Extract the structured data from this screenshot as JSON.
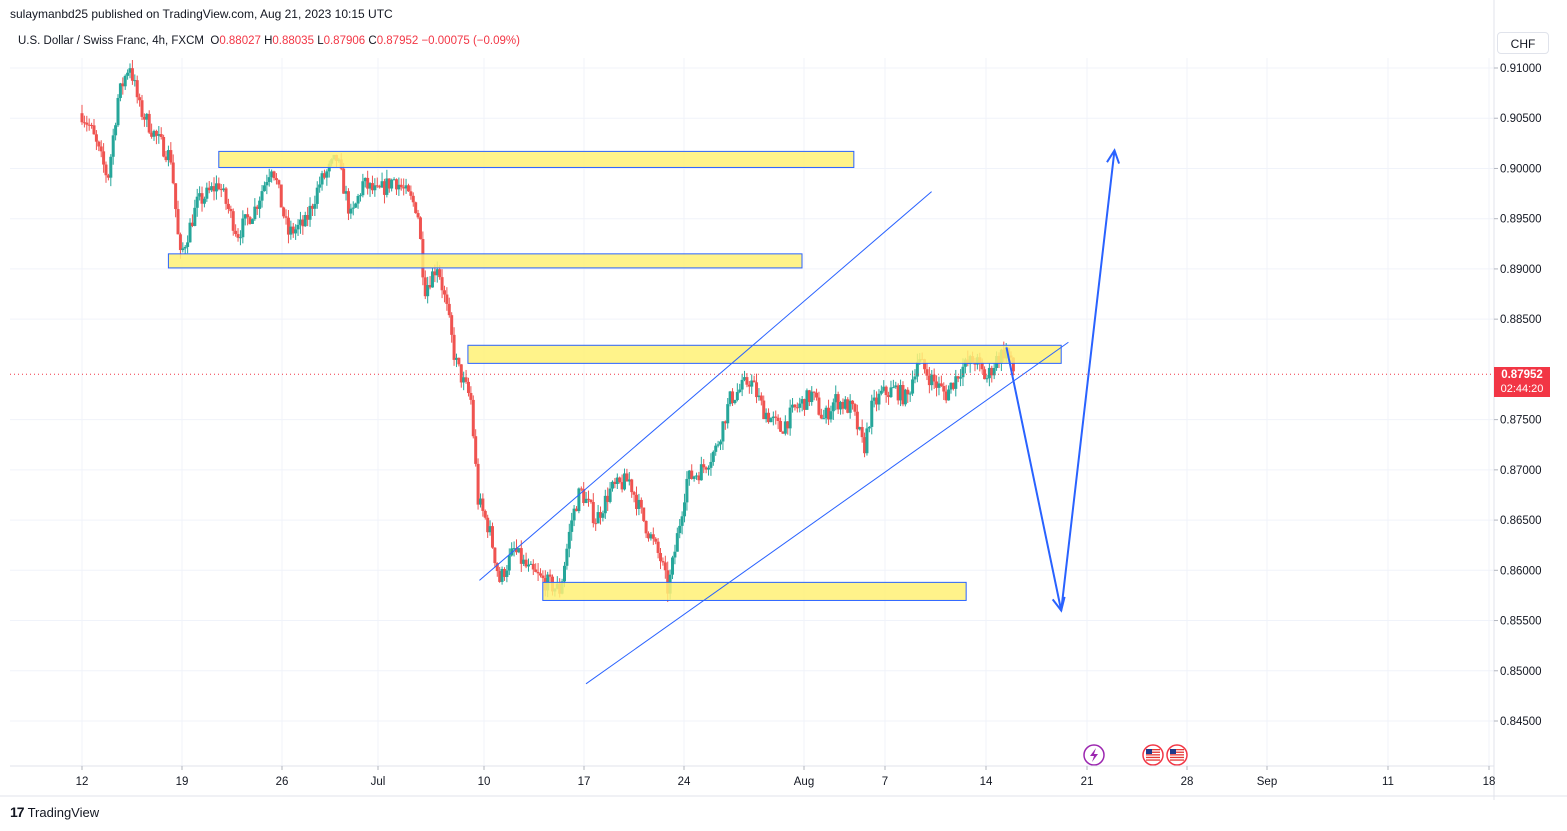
{
  "header": {
    "publisher_line": "sulaymanbd25 published on TradingView.com, Aug 21, 2023 10:15 UTC",
    "symbol": "U.S. Dollar / Swiss Franc, 4h, FXCM",
    "open_label": "O",
    "open": "0.88027",
    "high_label": "H",
    "high": "0.88035",
    "low_label": "L",
    "low": "0.87906",
    "close_label": "C",
    "close": "0.87952",
    "change": "−0.00075 (−0.09%)"
  },
  "currency_button": "CHF",
  "price_tag": {
    "price": "0.87952",
    "countdown": "02:44:20"
  },
  "footer": {
    "brand": "TradingView"
  },
  "colors": {
    "up": "#26a69a",
    "down": "#ef5350",
    "zone_fill": "#fff176",
    "zone_border": "#2962ff",
    "line": "#2962ff",
    "price_line": "#f23645",
    "grid": "#f0f3fa"
  },
  "icons": [
    "tradingview-logo-icon",
    "lightning-icon",
    "us-flag-icon"
  ],
  "chart_data": {
    "type": "candlestick",
    "timeframe": "4h",
    "x_ticks": [
      "12",
      "19",
      "26",
      "Jul",
      "10",
      "17",
      "24",
      "Aug",
      "7",
      "14",
      "21",
      "28",
      "Sep",
      "11",
      "18"
    ],
    "y_ticks": [
      "0.91000",
      "0.90500",
      "0.90000",
      "0.89500",
      "0.89000",
      "0.88500",
      "0.87500",
      "0.87000",
      "0.86500",
      "0.86000",
      "0.85500",
      "0.85000",
      "0.84500"
    ],
    "ylim": [
      0.8425,
      0.9125
    ],
    "last_price": 0.87952,
    "path_points": [
      {
        "x": 12.0,
        "y": 0.9055
      },
      {
        "x": 12.6,
        "y": 0.904
      },
      {
        "x": 13.8,
        "y": 0.899
      },
      {
        "x": 14.5,
        "y": 0.907
      },
      {
        "x": 15.3,
        "y": 0.9105
      },
      {
        "x": 16.0,
        "y": 0.906
      },
      {
        "x": 17.2,
        "y": 0.903
      },
      {
        "x": 18.2,
        "y": 0.901
      },
      {
        "x": 18.8,
        "y": 0.891
      },
      {
        "x": 20.0,
        "y": 0.8965
      },
      {
        "x": 21.5,
        "y": 0.8985
      },
      {
        "x": 22.8,
        "y": 0.8935
      },
      {
        "x": 24.0,
        "y": 0.896
      },
      {
        "x": 25.2,
        "y": 0.9005
      },
      {
        "x": 26.3,
        "y": 0.8935
      },
      {
        "x": 27.5,
        "y": 0.8945
      },
      {
        "x": 28.5,
        "y": 0.8985
      },
      {
        "x": 29.7,
        "y": 0.901
      },
      {
        "x": 30.7,
        "y": 0.895
      },
      {
        "x": 31.5,
        "y": 0.8985
      },
      {
        "x": 32.5,
        "y": 0.8975
      },
      {
        "x": 33.7,
        "y": 0.899
      },
      {
        "x": 34.5,
        "y": 0.8975
      },
      {
        "x": 35.3,
        "y": 0.896
      },
      {
        "x": 35.8,
        "y": 0.888
      },
      {
        "x": 36.7,
        "y": 0.8905
      },
      {
        "x": 37.4,
        "y": 0.8855
      },
      {
        "x": 37.9,
        "y": 0.881
      },
      {
        "x": 38.4,
        "y": 0.879
      },
      {
        "x": 39.0,
        "y": 0.877
      },
      {
        "x": 39.5,
        "y": 0.867
      },
      {
        "x": 40.3,
        "y": 0.864
      },
      {
        "x": 41.0,
        "y": 0.859
      },
      {
        "x": 42.0,
        "y": 0.862
      },
      {
        "x": 43.0,
        "y": 0.86
      },
      {
        "x": 44.0,
        "y": 0.859
      },
      {
        "x": 45.2,
        "y": 0.858
      },
      {
        "x": 46.0,
        "y": 0.865
      },
      {
        "x": 46.6,
        "y": 0.868
      },
      {
        "x": 47.7,
        "y": 0.865
      },
      {
        "x": 48.7,
        "y": 0.868
      },
      {
        "x": 50.0,
        "y": 0.869
      },
      {
        "x": 51.0,
        "y": 0.865
      },
      {
        "x": 52.2,
        "y": 0.861
      },
      {
        "x": 52.7,
        "y": 0.858
      },
      {
        "x": 53.3,
        "y": 0.863
      },
      {
        "x": 54.0,
        "y": 0.869
      },
      {
        "x": 55.0,
        "y": 0.87
      },
      {
        "x": 56.0,
        "y": 0.872
      },
      {
        "x": 57.0,
        "y": 0.877
      },
      {
        "x": 57.7,
        "y": 0.878
      },
      {
        "x": 58.4,
        "y": 0.879
      },
      {
        "x": 59.3,
        "y": 0.876
      },
      {
        "x": 60.5,
        "y": 0.874
      },
      {
        "x": 61.5,
        "y": 0.876
      },
      {
        "x": 62.7,
        "y": 0.8775
      },
      {
        "x": 63.5,
        "y": 0.875
      },
      {
        "x": 64.3,
        "y": 0.877
      },
      {
        "x": 65.5,
        "y": 0.876
      },
      {
        "x": 66.3,
        "y": 0.872
      },
      {
        "x": 66.8,
        "y": 0.876
      },
      {
        "x": 67.5,
        "y": 0.8775
      },
      {
        "x": 68.5,
        "y": 0.878
      },
      {
        "x": 69.3,
        "y": 0.877
      },
      {
        "x": 70.0,
        "y": 0.881
      },
      {
        "x": 71.0,
        "y": 0.879
      },
      {
        "x": 72.0,
        "y": 0.8775
      },
      {
        "x": 73.0,
        "y": 0.88
      },
      {
        "x": 74.0,
        "y": 0.881
      },
      {
        "x": 74.8,
        "y": 0.879
      },
      {
        "x": 75.5,
        "y": 0.881
      },
      {
        "x": 76.2,
        "y": 0.882
      },
      {
        "x": 76.6,
        "y": 0.88
      },
      {
        "x": 76.8,
        "y": 0.87952
      }
    ],
    "zones": [
      {
        "x1": 21.5,
        "x2": 65.6,
        "y1": 0.9001,
        "y2": 0.9017
      },
      {
        "x1": 18.0,
        "x2": 62.0,
        "y1": 0.8901,
        "y2": 0.8915
      },
      {
        "x1": 38.8,
        "x2": 80.0,
        "y1": 0.8806,
        "y2": 0.8824
      },
      {
        "x1": 44.0,
        "x2": 73.4,
        "y1": 0.857,
        "y2": 0.8588
      }
    ],
    "channel_lines": [
      {
        "x1": 39.6,
        "y1": 0.859,
        "x2": 71.0,
        "y2": 0.8977
      },
      {
        "x1": 47.0,
        "y1": 0.8487,
        "x2": 80.5,
        "y2": 0.8827
      }
    ],
    "projection": [
      {
        "x": 76.2,
        "y": 0.8822
      },
      {
        "x": 80.0,
        "y": 0.856
      },
      {
        "x": 83.7,
        "y": 0.9018
      }
    ]
  }
}
